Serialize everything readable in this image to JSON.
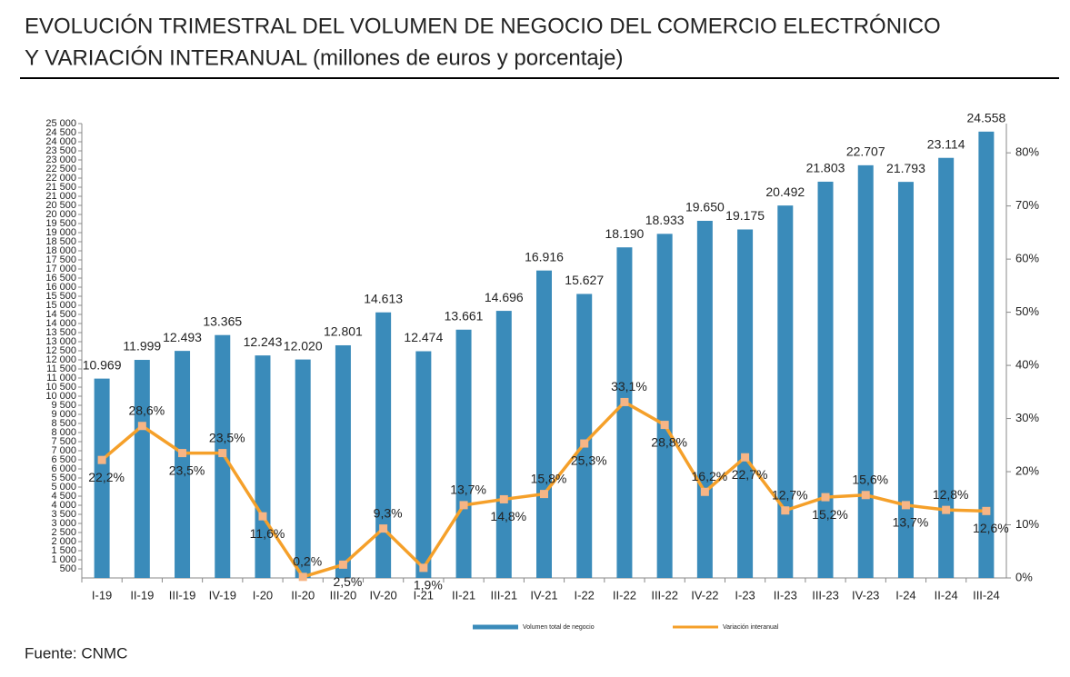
{
  "chart_data": {
    "type": "bar-line",
    "title": [
      "EVOLUCIÓN TRIMESTRAL DEL VOLUMEN DE NEGOCIO DEL COMERCIO ELECTRÓNICO",
      "Y VARIACIÓN INTERANUAL (millones de euros y porcentaje)"
    ],
    "source": "Fuente: CNMC",
    "categories": [
      "I-19",
      "II-19",
      "III-19",
      "IV-19",
      "I-20",
      "II-20",
      "III-20",
      "IV-20",
      "I-21",
      "II-21",
      "III-21",
      "IV-21",
      "I-22",
      "II-22",
      "III-22",
      "IV-22",
      "I-23",
      "II-23",
      "III-23",
      "IV-23",
      "I-24",
      "II-24",
      "III-24"
    ],
    "series": [
      {
        "name": "Volumen total de negocio",
        "type": "bar",
        "color": "#3a8bba",
        "values": [
          10969,
          11999,
          12493,
          13365,
          12243,
          12020,
          12801,
          14613,
          12474,
          13661,
          14696,
          16916,
          15627,
          18190,
          18933,
          19650,
          19175,
          20492,
          21803,
          22707,
          21793,
          23114,
          24558
        ],
        "value_labels": [
          "10.969",
          "11.999",
          "12.493",
          "13.365",
          "12.243",
          "12.020",
          "12.801",
          "14.613",
          "12.474",
          "13.661",
          "14.696",
          "16.916",
          "15.627",
          "18.190",
          "18.933",
          "19.650",
          "19.175",
          "20.492",
          "21.803",
          "22.707",
          "21.793",
          "23.114",
          "24.558"
        ]
      },
      {
        "name": "Variación interanual",
        "type": "line",
        "axis": "y2",
        "color": "#f5a02a",
        "marker_color": "#f7b585",
        "values": [
          22.2,
          28.6,
          23.5,
          23.5,
          11.6,
          0.2,
          2.5,
          9.3,
          1.9,
          13.7,
          14.8,
          15.8,
          25.3,
          33.1,
          28.8,
          16.2,
          22.7,
          12.7,
          15.2,
          15.6,
          13.7,
          12.8,
          12.6
        ],
        "value_labels": [
          "22,2%",
          "28,6%",
          "23,5%",
          "23,5%",
          "11,6%",
          "0,2%",
          "2,5%",
          "9,3%",
          "1,9%",
          "13,7%",
          "14,8%",
          "15,8%",
          "25,3%",
          "33,1%",
          "28,8%",
          "16,2%",
          "22,7%",
          "12,7%",
          "15,2%",
          "15,6%",
          "13,7%",
          "12,8%",
          "12,6%"
        ]
      }
    ],
    "ylim": [
      0,
      25000
    ],
    "yticks": [
      500,
      {
        "value": 1000,
        "label": "1 000"
      },
      {
        "value": 1500,
        "label": "1 500"
      },
      {
        "value": 2000,
        "label": "2 000"
      },
      {
        "value": 2500,
        "label": "2 500"
      },
      {
        "value": 3000,
        "label": "3 000"
      },
      {
        "value": 3500,
        "label": "3 500"
      },
      {
        "value": 4000,
        "label": "4 000"
      },
      {
        "value": 4500,
        "label": "4 500"
      },
      {
        "value": 5000,
        "label": "5 000"
      },
      {
        "value": 5500,
        "label": "5 500"
      },
      {
        "value": 6000,
        "label": "6 000"
      },
      {
        "value": 6500,
        "label": "6 500"
      },
      {
        "value": 7000,
        "label": "7 000"
      },
      {
        "value": 7500,
        "label": "7 500"
      },
      {
        "value": 8000,
        "label": "8 000"
      },
      {
        "value": 8500,
        "label": "8 500"
      },
      {
        "value": 9000,
        "label": "9 000"
      },
      {
        "value": 9500,
        "label": "9 500"
      },
      {
        "value": 10000,
        "label": "10 000"
      },
      {
        "value": 10500,
        "label": "10 500"
      },
      {
        "value": 11000,
        "label": "11 000"
      },
      {
        "value": 11500,
        "label": "11 500"
      },
      {
        "value": 12000,
        "label": "12 000"
      },
      {
        "value": 12500,
        "label": "12 500"
      },
      {
        "value": 13000,
        "label": "13 000"
      },
      {
        "value": 13500,
        "label": "13 500"
      },
      {
        "value": 14000,
        "label": "14 000"
      },
      {
        "value": 14500,
        "label": "14 500"
      },
      {
        "value": 15000,
        "label": "15 000"
      },
      {
        "value": 15500,
        "label": "15 500"
      },
      {
        "value": 16000,
        "label": "16 000"
      },
      {
        "value": 16500,
        "label": "16 500"
      },
      {
        "value": 17000,
        "label": "17 000"
      },
      {
        "value": 17500,
        "label": "17 500"
      },
      {
        "value": 18000,
        "label": "18 000"
      },
      {
        "value": 18500,
        "label": "18 500"
      },
      {
        "value": 19000,
        "label": "19 000"
      },
      {
        "value": 19500,
        "label": "19 500"
      },
      {
        "value": 20000,
        "label": "20 000"
      },
      {
        "value": 20500,
        "label": "20 500"
      },
      {
        "value": 21000,
        "label": "21 000"
      },
      {
        "value": 21500,
        "label": "21 500"
      },
      {
        "value": 22000,
        "label": "22 000"
      },
      {
        "value": 22500,
        "label": "22 500"
      },
      {
        "value": 23000,
        "label": "23 000"
      },
      {
        "value": 23500,
        "label": "23 500"
      },
      {
        "value": 24000,
        "label": "24 000"
      },
      {
        "value": 24500,
        "label": "24 500"
      },
      {
        "value": 25000,
        "label": "25 000"
      }
    ],
    "y2lim": [
      0,
      85.5
    ],
    "y2ticks": [
      {
        "value": 0,
        "label": "0%"
      },
      {
        "value": 10,
        "label": "10%"
      },
      {
        "value": 20,
        "label": "20%"
      },
      {
        "value": 30,
        "label": "30%"
      },
      {
        "value": 40,
        "label": "40%"
      },
      {
        "value": 50,
        "label": "50%"
      },
      {
        "value": 60,
        "label": "60%"
      },
      {
        "value": 70,
        "label": "70%"
      },
      {
        "value": 80,
        "label": "80%"
      }
    ]
  }
}
